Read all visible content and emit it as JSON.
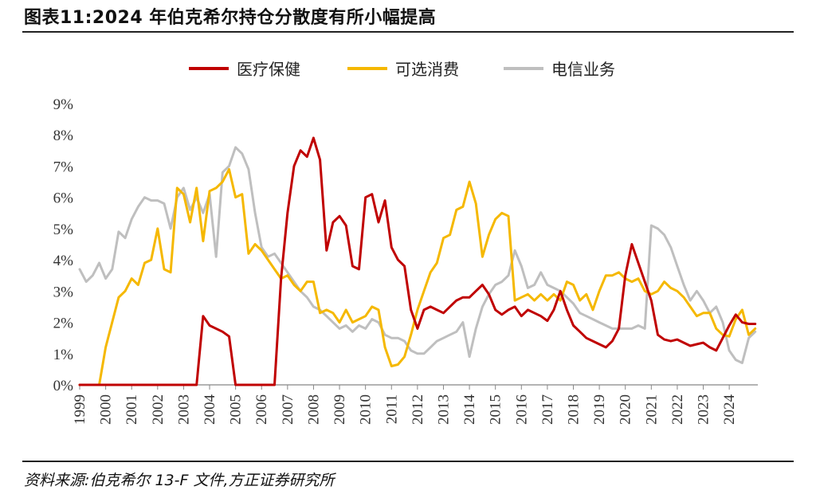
{
  "header": {
    "title": "图表11:2024 年伯克希尔持仓分散度有所小幅提高"
  },
  "footer": {
    "source": "资料来源:伯克希尔 13-F 文件,方正证券研究所"
  },
  "chart_data": {
    "type": "line",
    "title": "图表11:2024 年伯克希尔持仓分散度有所小幅提高",
    "xlabel": "",
    "ylabel": "",
    "ylim": [
      0,
      9
    ],
    "xlim": [
      1999,
      2025.1
    ],
    "grid": false,
    "legend_position": "top",
    "x_ticks": [
      "1999",
      "2000",
      "2001",
      "2002",
      "2003",
      "2004",
      "2005",
      "2006",
      "2007",
      "2008",
      "2009",
      "2010",
      "2011",
      "2012",
      "2013",
      "2014",
      "2015",
      "2016",
      "2017",
      "2018",
      "2019",
      "2020",
      "2021",
      "2022",
      "2023",
      "2024"
    ],
    "y_ticks": [
      "0%",
      "1%",
      "2%",
      "3%",
      "4%",
      "5%",
      "6%",
      "7%",
      "8%",
      "9%"
    ],
    "series": [
      {
        "name": "医疗保健",
        "color": "#C00000",
        "x": [
          1999,
          2003.5,
          2003.75,
          2004.0,
          2004.5,
          2004.75,
          2005.0,
          2006.5,
          2006.75,
          2007.0,
          2007.25,
          2007.5,
          2007.75,
          2008.0,
          2008.25,
          2008.5,
          2008.75,
          2009.0,
          2009.25,
          2009.5,
          2009.75,
          2010.0,
          2010.25,
          2010.5,
          2010.75,
          2011.0,
          2011.25,
          2011.5,
          2011.75,
          2012.0,
          2012.25,
          2012.5,
          2012.75,
          2013.0,
          2013.25,
          2013.5,
          2013.75,
          2014.0,
          2014.25,
          2014.5,
          2014.75,
          2015.0,
          2015.25,
          2015.5,
          2015.75,
          2016.0,
          2016.25,
          2016.5,
          2016.75,
          2017.0,
          2017.25,
          2017.5,
          2017.75,
          2018.0,
          2018.25,
          2018.5,
          2018.75,
          2019.0,
          2019.25,
          2019.5,
          2019.75,
          2020.0,
          2020.25,
          2020.5,
          2020.75,
          2021.0,
          2021.25,
          2021.5,
          2021.75,
          2022.0,
          2022.25,
          2022.5,
          2022.75,
          2023.0,
          2023.25,
          2023.5,
          2023.75,
          2024.0,
          2024.25,
          2024.5,
          2024.75,
          2025.0
        ],
        "values": [
          0,
          0,
          2.2,
          1.9,
          1.7,
          1.55,
          0,
          0,
          3.4,
          5.5,
          7.0,
          7.5,
          7.3,
          7.9,
          7.2,
          4.3,
          5.2,
          5.4,
          5.1,
          3.8,
          3.7,
          6.0,
          6.1,
          5.2,
          5.9,
          4.4,
          4.0,
          3.8,
          2.4,
          1.8,
          2.4,
          2.5,
          2.4,
          2.3,
          2.5,
          2.7,
          2.8,
          2.8,
          3.0,
          3.2,
          2.9,
          2.4,
          2.25,
          2.4,
          2.5,
          2.2,
          2.4,
          2.3,
          2.2,
          2.05,
          2.4,
          3.0,
          2.4,
          1.9,
          1.7,
          1.5,
          1.4,
          1.3,
          1.2,
          1.4,
          1.8,
          3.5,
          4.5,
          3.9,
          3.3,
          2.7,
          1.6,
          1.45,
          1.4,
          1.45,
          1.35,
          1.25,
          1.3,
          1.35,
          1.2,
          1.1,
          1.5,
          1.9,
          2.25,
          2.0,
          1.95,
          1.95
        ]
      },
      {
        "name": "可选消费",
        "color": "#F5B800",
        "x": [
          1999,
          1999.75,
          2000.0,
          2000.5,
          2000.75,
          2001.0,
          2001.25,
          2001.5,
          2001.75,
          2002.0,
          2002.25,
          2002.5,
          2002.75,
          2003.0,
          2003.25,
          2003.5,
          2003.75,
          2004.0,
          2004.25,
          2004.5,
          2004.75,
          2005.0,
          2005.25,
          2005.5,
          2005.75,
          2006.0,
          2006.25,
          2006.5,
          2006.75,
          2007.0,
          2007.25,
          2007.5,
          2007.75,
          2008.0,
          2008.25,
          2008.5,
          2008.75,
          2009.0,
          2009.25,
          2009.5,
          2009.75,
          2010.0,
          2010.25,
          2010.5,
          2010.75,
          2011.0,
          2011.25,
          2011.5,
          2011.75,
          2012.0,
          2012.25,
          2012.5,
          2012.75,
          2013.0,
          2013.25,
          2013.5,
          2013.75,
          2014.0,
          2014.25,
          2014.5,
          2014.75,
          2015.0,
          2015.25,
          2015.5,
          2015.75,
          2016.0,
          2016.25,
          2016.5,
          2016.75,
          2017.0,
          2017.25,
          2017.5,
          2017.75,
          2018.0,
          2018.25,
          2018.5,
          2018.75,
          2019.0,
          2019.25,
          2019.5,
          2019.75,
          2020.0,
          2020.25,
          2020.5,
          2020.75,
          2021.0,
          2021.25,
          2021.5,
          2021.75,
          2022.0,
          2022.25,
          2022.5,
          2022.75,
          2023.0,
          2023.25,
          2023.5,
          2023.75,
          2024.0,
          2024.25,
          2024.5,
          2024.75,
          2025.0
        ],
        "values": [
          0,
          0,
          1.2,
          2.8,
          3.0,
          3.4,
          3.2,
          3.9,
          4.0,
          5.0,
          3.7,
          3.6,
          6.3,
          6.1,
          5.2,
          6.3,
          4.6,
          6.2,
          6.3,
          6.5,
          6.9,
          6.0,
          6.1,
          4.2,
          4.5,
          4.3,
          4.0,
          3.7,
          3.4,
          3.5,
          3.2,
          3.0,
          3.3,
          3.3,
          2.3,
          2.4,
          2.3,
          2.0,
          2.4,
          2.0,
          2.1,
          2.2,
          2.5,
          2.4,
          1.2,
          0.6,
          0.65,
          0.9,
          1.6,
          2.4,
          3.0,
          3.6,
          3.9,
          4.7,
          4.8,
          5.6,
          5.7,
          6.5,
          5.8,
          4.1,
          4.8,
          5.3,
          5.5,
          5.4,
          2.7,
          2.8,
          2.9,
          2.7,
          2.9,
          2.7,
          2.9,
          2.7,
          3.3,
          3.2,
          2.7,
          2.9,
          2.4,
          3.0,
          3.5,
          3.5,
          3.6,
          3.4,
          3.3,
          3.4,
          3.0,
          2.9,
          3.0,
          3.3,
          3.1,
          3.0,
          2.8,
          2.5,
          2.2,
          2.3,
          2.3,
          1.8,
          1.6,
          1.55,
          2.1,
          2.4,
          1.6,
          1.8
        ]
      },
      {
        "name": "电信业务",
        "color": "#BFBFBF",
        "x": [
          1999,
          1999.25,
          1999.5,
          1999.75,
          2000.0,
          2000.25,
          2000.5,
          2000.75,
          2001.0,
          2001.25,
          2001.5,
          2001.75,
          2002.0,
          2002.25,
          2002.5,
          2002.75,
          2003.0,
          2003.25,
          2003.5,
          2003.75,
          2004.0,
          2004.25,
          2004.5,
          2004.75,
          2005.0,
          2005.25,
          2005.5,
          2005.75,
          2006.0,
          2006.25,
          2006.5,
          2006.75,
          2007.0,
          2007.25,
          2007.5,
          2007.75,
          2008.0,
          2008.25,
          2008.5,
          2008.75,
          2009.0,
          2009.25,
          2009.5,
          2009.75,
          2010.0,
          2010.25,
          2010.5,
          2010.75,
          2011.0,
          2011.25,
          2011.5,
          2011.75,
          2012.0,
          2012.25,
          2012.5,
          2012.75,
          2013.0,
          2013.25,
          2013.5,
          2013.75,
          2014.0,
          2014.25,
          2014.5,
          2014.75,
          2015.0,
          2015.25,
          2015.5,
          2015.75,
          2016.0,
          2016.25,
          2016.5,
          2016.75,
          2017.0,
          2017.25,
          2017.5,
          2017.75,
          2018.0,
          2018.25,
          2018.5,
          2018.75,
          2019.0,
          2019.25,
          2019.5,
          2019.75,
          2020.0,
          2020.25,
          2020.5,
          2020.75,
          2021.0,
          2021.25,
          2021.5,
          2021.75,
          2022.0,
          2022.25,
          2022.5,
          2022.75,
          2023.0,
          2023.25,
          2023.5,
          2023.75,
          2024.0,
          2024.25,
          2024.5,
          2024.75,
          2025.0
        ],
        "values": [
          3.7,
          3.3,
          3.5,
          3.9,
          3.4,
          3.7,
          4.9,
          4.7,
          5.3,
          5.7,
          6.0,
          5.9,
          5.9,
          5.8,
          5.0,
          6.0,
          6.3,
          5.6,
          6.0,
          5.5,
          6.1,
          4.1,
          6.8,
          7.0,
          7.6,
          7.4,
          6.9,
          5.5,
          4.4,
          4.1,
          4.2,
          3.9,
          3.6,
          3.3,
          3.0,
          2.8,
          2.5,
          2.4,
          2.2,
          2.0,
          1.8,
          1.9,
          1.7,
          1.9,
          1.8,
          2.1,
          2.0,
          1.6,
          1.5,
          1.5,
          1.4,
          1.1,
          1.0,
          1.0,
          1.2,
          1.4,
          1.5,
          1.6,
          1.7,
          2.0,
          0.9,
          1.8,
          2.5,
          2.9,
          3.2,
          3.3,
          3.5,
          4.3,
          3.8,
          3.1,
          3.2,
          3.6,
          3.2,
          3.1,
          3.0,
          2.8,
          2.6,
          2.3,
          2.2,
          2.1,
          2.0,
          1.9,
          1.8,
          1.8,
          1.8,
          1.8,
          1.9,
          1.8,
          5.1,
          5.0,
          4.8,
          4.4,
          3.8,
          3.2,
          2.7,
          3.0,
          2.7,
          2.3,
          2.5,
          2.0,
          1.1,
          0.8,
          0.7,
          1.5,
          1.7
        ]
      }
    ]
  }
}
